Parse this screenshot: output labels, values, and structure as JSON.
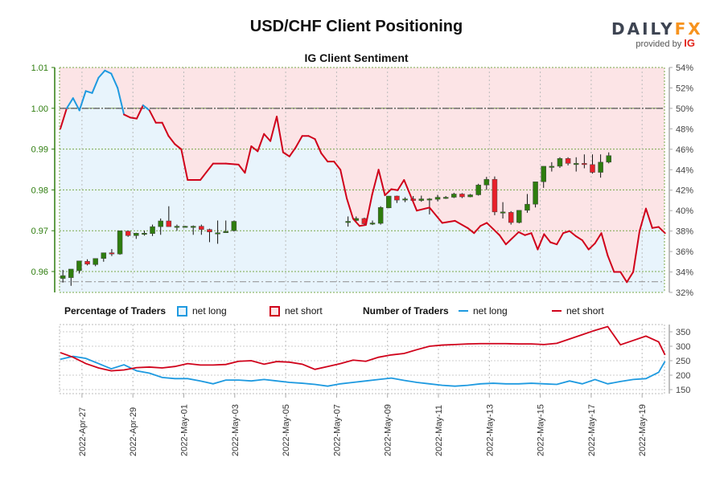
{
  "header": {
    "title": "USD/CHF Client Positioning",
    "subtitle": "IG Client Sentiment",
    "logo_main_a": "DAILY",
    "logo_main_b": "FX",
    "logo_sub": "provided by ",
    "logo_sub_brand": "IG"
  },
  "legend": {
    "pct_title": "Percentage of Traders",
    "pct_long": "net long",
    "pct_short": "net short",
    "num_title": "Number of Traders",
    "num_long": "net long",
    "num_short": "net short"
  },
  "colors": {
    "long": "#1e9ae0",
    "short": "#d0021b",
    "long_fill": "#e8f4fc",
    "short_fill": "#fce4e6",
    "axis_left": "#2e7d0e",
    "candle_up": "#2e7d0e",
    "candle_down": "#e8202a",
    "grid_green": "#7aa84a",
    "grid_gray": "#bbbbbb",
    "axis_right": "#444444"
  },
  "chart_data": [
    {
      "type": "candlestick+line",
      "title": "IG Client Sentiment",
      "left_axis": {
        "label": "USD/CHF price",
        "ticks": [
          "0.96",
          "0.97",
          "0.98",
          "0.99",
          "1.00",
          "1.01"
        ],
        "range": [
          0.9555,
          1.01
        ]
      },
      "right_axis": {
        "label": "net long %",
        "ticks": [
          "32%",
          "34%",
          "36%",
          "38%",
          "40%",
          "42%",
          "44%",
          "46%",
          "48%",
          "50%",
          "52%",
          "54%"
        ],
        "range": [
          32,
          54
        ]
      },
      "x_ticks": [
        "2022-Apr-27",
        "2022-Apr-29",
        "2022-May-01",
        "2022-May-03",
        "2022-May-05",
        "2022-May-07",
        "2022-May-09",
        "2022-May-11",
        "2022-May-13",
        "2022-May-15",
        "2022-May-17",
        "2022-May-19"
      ],
      "reference_lines": {
        "price_low": 0.9575,
        "pct_50": 50
      },
      "net_long_pct": {
        "x_day": [
          0,
          0.25,
          0.5,
          0.75,
          1,
          1.25,
          1.5,
          1.75,
          2,
          2.25,
          2.5,
          2.75,
          3,
          3.25,
          3.5,
          3.75,
          4,
          4.25,
          4.5,
          4.75,
          5,
          5.5,
          6,
          6.5,
          7,
          7.25,
          7.5,
          7.75,
          8,
          8.25,
          8.5,
          8.75,
          9,
          9.25,
          9.5,
          9.75,
          10,
          10.25,
          10.5,
          10.75,
          11,
          11.25,
          11.5,
          11.75,
          12,
          12.25,
          12.5,
          12.75,
          13,
          13.25,
          13.5,
          14,
          14.5,
          15,
          15.5,
          16,
          16.25,
          16.5,
          16.75,
          17,
          17.25,
          17.5,
          17.75,
          18,
          18.25,
          18.5,
          18.75,
          19,
          19.25,
          19.5,
          19.75,
          20,
          20.25,
          20.5,
          20.75,
          21,
          21.25,
          21.5,
          21.75,
          22,
          22.25,
          22.5,
          22.75,
          23,
          23.25,
          23.5,
          23.75
        ],
        "values": [
          48.0,
          50.0,
          51.0,
          49.8,
          51.7,
          51.5,
          53.0,
          53.7,
          53.4,
          52.0,
          49.4,
          49.1,
          49.0,
          50.3,
          49.8,
          48.6,
          48.6,
          47.3,
          46.5,
          46.0,
          43.0,
          43.0,
          44.6,
          44.6,
          44.5,
          43.7,
          46.3,
          45.8,
          47.5,
          46.8,
          49.2,
          45.7,
          45.3,
          46.2,
          47.3,
          47.3,
          47.0,
          45.6,
          44.8,
          44.8,
          44.0,
          41.2,
          39.2,
          38.5,
          38.6,
          41.6,
          44.0,
          41.5,
          42.1,
          42.0,
          43.0,
          40.0,
          40.3,
          38.8,
          39.0,
          38.3,
          37.8,
          38.5,
          38.8,
          38.2,
          37.6,
          36.7,
          37.3,
          37.9,
          37.6,
          37.8,
          36.2,
          37.7,
          36.9,
          36.7,
          37.8,
          38.0,
          37.5,
          37.1,
          36.2,
          36.8,
          37.8,
          35.6,
          34.0,
          34.0,
          33.0,
          34.0,
          38.0,
          40.2,
          38.3,
          38.4,
          37.8,
          38.0,
          40.2,
          39.6,
          40.5,
          45.0,
          48.0
        ]
      },
      "candles": [
        {
          "d": 0.1,
          "o": 0.9583,
          "h": 0.9604,
          "l": 0.9573,
          "c": 0.959,
          "gap": false
        },
        {
          "d": 0.42,
          "o": 0.9585,
          "h": 0.9604,
          "l": 0.9565,
          "c": 0.9606
        },
        {
          "d": 0.74,
          "o": 0.9602,
          "h": 0.9626,
          "l": 0.9595,
          "c": 0.9626
        },
        {
          "d": 1.06,
          "o": 0.9625,
          "h": 0.963,
          "l": 0.9615,
          "c": 0.9618
        },
        {
          "d": 1.38,
          "o": 0.9617,
          "h": 0.9632,
          "l": 0.9613,
          "c": 0.9632
        },
        {
          "d": 1.7,
          "o": 0.9632,
          "h": 0.9646,
          "l": 0.9624,
          "c": 0.9646
        },
        {
          "d": 2.02,
          "o": 0.9646,
          "h": 0.9655,
          "l": 0.9638,
          "c": 0.9644
        },
        {
          "d": 2.34,
          "o": 0.9643,
          "h": 0.97,
          "l": 0.9641,
          "c": 0.97
        },
        {
          "d": 2.66,
          "o": 0.9699,
          "h": 0.97,
          "l": 0.9685,
          "c": 0.9688
        },
        {
          "d": 2.98,
          "o": 0.9688,
          "h": 0.9695,
          "l": 0.968,
          "c": 0.9694
        },
        {
          "d": 3.3,
          "o": 0.9693,
          "h": 0.97,
          "l": 0.9688,
          "c": 0.9694
        },
        {
          "d": 3.62,
          "o": 0.9693,
          "h": 0.9715,
          "l": 0.9687,
          "c": 0.971
        },
        {
          "d": 3.94,
          "o": 0.971,
          "h": 0.973,
          "l": 0.969,
          "c": 0.9724
        },
        {
          "d": 4.26,
          "o": 0.9724,
          "h": 0.976,
          "l": 0.971,
          "c": 0.971
        },
        {
          "d": 4.58,
          "o": 0.971,
          "h": 0.9715,
          "l": 0.97,
          "c": 0.9711
        },
        {
          "d": 4.9,
          "o": 0.9711,
          "h": 0.9712,
          "l": 0.9708,
          "c": 0.9711
        },
        {
          "d": 5.22,
          "o": 0.9711,
          "h": 0.9713,
          "l": 0.969,
          "c": 0.9711
        },
        {
          "d": 5.54,
          "o": 0.9711,
          "h": 0.9715,
          "l": 0.969,
          "c": 0.9703
        },
        {
          "d": 5.86,
          "o": 0.9703,
          "h": 0.9705,
          "l": 0.9672,
          "c": 0.9697
        },
        {
          "d": 6.18,
          "o": 0.9695,
          "h": 0.9725,
          "l": 0.9668,
          "c": 0.9695
        },
        {
          "d": 6.5,
          "o": 0.9697,
          "h": 0.9725,
          "l": 0.9695,
          "c": 0.9698
        },
        {
          "d": 6.82,
          "o": 0.97,
          "h": 0.9725,
          "l": 0.9698,
          "c": 0.9723
        },
        {
          "d": 11.3,
          "o": 0.9722,
          "h": 0.9735,
          "l": 0.971,
          "c": 0.9723
        },
        {
          "d": 11.62,
          "o": 0.9725,
          "h": 0.9735,
          "l": 0.972,
          "c": 0.973
        },
        {
          "d": 11.94,
          "o": 0.973,
          "h": 0.9732,
          "l": 0.9713,
          "c": 0.9717
        },
        {
          "d": 12.26,
          "o": 0.9718,
          "h": 0.9725,
          "l": 0.9714,
          "c": 0.9719
        },
        {
          "d": 12.58,
          "o": 0.9718,
          "h": 0.976,
          "l": 0.9715,
          "c": 0.9757
        },
        {
          "d": 12.9,
          "o": 0.9756,
          "h": 0.9785,
          "l": 0.9755,
          "c": 0.9785
        },
        {
          "d": 13.22,
          "o": 0.9785,
          "h": 0.9786,
          "l": 0.9768,
          "c": 0.9775
        },
        {
          "d": 13.54,
          "o": 0.9775,
          "h": 0.9782,
          "l": 0.977,
          "c": 0.9778
        },
        {
          "d": 13.86,
          "o": 0.9778,
          "h": 0.9785,
          "l": 0.9771,
          "c": 0.9774
        },
        {
          "d": 14.18,
          "o": 0.9774,
          "h": 0.9786,
          "l": 0.9771,
          "c": 0.9778
        },
        {
          "d": 14.5,
          "o": 0.9778,
          "h": 0.978,
          "l": 0.974,
          "c": 0.9778
        },
        {
          "d": 14.82,
          "o": 0.9777,
          "h": 0.9788,
          "l": 0.9772,
          "c": 0.9782
        },
        {
          "d": 15.14,
          "o": 0.9782,
          "h": 0.9785,
          "l": 0.9778,
          "c": 0.9782
        },
        {
          "d": 15.46,
          "o": 0.9782,
          "h": 0.9793,
          "l": 0.978,
          "c": 0.979
        },
        {
          "d": 15.78,
          "o": 0.979,
          "h": 0.9792,
          "l": 0.978,
          "c": 0.9783
        },
        {
          "d": 16.1,
          "o": 0.9783,
          "h": 0.979,
          "l": 0.9782,
          "c": 0.9788
        },
        {
          "d": 16.42,
          "o": 0.9788,
          "h": 0.9815,
          "l": 0.9786,
          "c": 0.9812
        },
        {
          "d": 16.74,
          "o": 0.9812,
          "h": 0.9832,
          "l": 0.98,
          "c": 0.9826
        },
        {
          "d": 17.06,
          "o": 0.9826,
          "h": 0.9833,
          "l": 0.9738,
          "c": 0.9746
        },
        {
          "d": 17.38,
          "o": 0.9746,
          "h": 0.977,
          "l": 0.973,
          "c": 0.9746
        },
        {
          "d": 17.7,
          "o": 0.9745,
          "h": 0.9748,
          "l": 0.9715,
          "c": 0.972
        },
        {
          "d": 18.02,
          "o": 0.972,
          "h": 0.975,
          "l": 0.9718,
          "c": 0.975
        },
        {
          "d": 18.34,
          "o": 0.975,
          "h": 0.979,
          "l": 0.9744,
          "c": 0.9765
        },
        {
          "d": 18.66,
          "o": 0.9765,
          "h": 0.9805,
          "l": 0.9757,
          "c": 0.982
        },
        {
          "d": 18.98,
          "o": 0.982,
          "h": 0.9858,
          "l": 0.9805,
          "c": 0.9858
        },
        {
          "d": 19.3,
          "o": 0.9858,
          "h": 0.9868,
          "l": 0.9845,
          "c": 0.9858
        },
        {
          "d": 19.62,
          "o": 0.9858,
          "h": 0.988,
          "l": 0.9854,
          "c": 0.9877
        },
        {
          "d": 19.94,
          "o": 0.9877,
          "h": 0.988,
          "l": 0.986,
          "c": 0.9865
        },
        {
          "d": 20.26,
          "o": 0.9865,
          "h": 0.988,
          "l": 0.9845,
          "c": 0.9865
        },
        {
          "d": 20.58,
          "o": 0.9865,
          "h": 0.9887,
          "l": 0.9853,
          "c": 0.9862
        },
        {
          "d": 20.9,
          "o": 0.9862,
          "h": 0.9887,
          "l": 0.984,
          "c": 0.9843
        },
        {
          "d": 21.22,
          "o": 0.9843,
          "h": 0.9887,
          "l": 0.983,
          "c": 0.9868
        },
        {
          "d": 21.54,
          "o": 0.9868,
          "h": 0.9892,
          "l": 0.9865,
          "c": 0.9884
        }
      ]
    },
    {
      "type": "line",
      "title": "Number of Traders",
      "right_axis": {
        "ticks": [
          "150",
          "200",
          "250",
          "300",
          "350"
        ],
        "range": [
          140,
          375
        ]
      },
      "x_day": [
        0,
        0.5,
        1,
        1.5,
        2,
        2.5,
        3,
        3.5,
        4,
        4.5,
        5,
        5.5,
        6,
        6.5,
        7,
        7.5,
        8,
        8.5,
        9,
        9.5,
        10,
        10.5,
        11,
        11.5,
        12,
        12.5,
        13,
        13.5,
        14,
        14.5,
        15,
        15.5,
        16,
        16.5,
        17,
        17.5,
        18,
        18.5,
        19,
        19.5,
        20,
        20.5,
        21,
        21.5,
        22,
        22.5,
        23,
        23.5,
        23.75
      ],
      "series": [
        {
          "name": "net long",
          "values": [
            255,
            265,
            258,
            240,
            222,
            236,
            215,
            207,
            192,
            188,
            188,
            180,
            170,
            183,
            183,
            180,
            185,
            180,
            175,
            172,
            168,
            162,
            170,
            175,
            180,
            185,
            190,
            182,
            175,
            170,
            165,
            162,
            165,
            170,
            172,
            170,
            170,
            172,
            170,
            168,
            180,
            170,
            185,
            170,
            178,
            185,
            188,
            210,
            248
          ]
        },
        {
          "name": "net short",
          "values": [
            278,
            262,
            240,
            225,
            215,
            218,
            226,
            228,
            225,
            230,
            240,
            235,
            235,
            237,
            248,
            250,
            238,
            247,
            245,
            238,
            220,
            230,
            240,
            252,
            248,
            262,
            270,
            275,
            288,
            300,
            304,
            306,
            308,
            309,
            309,
            309,
            308,
            308,
            306,
            310,
            325,
            340,
            355,
            368,
            305,
            320,
            335,
            315,
            270
          ]
        }
      ]
    }
  ]
}
